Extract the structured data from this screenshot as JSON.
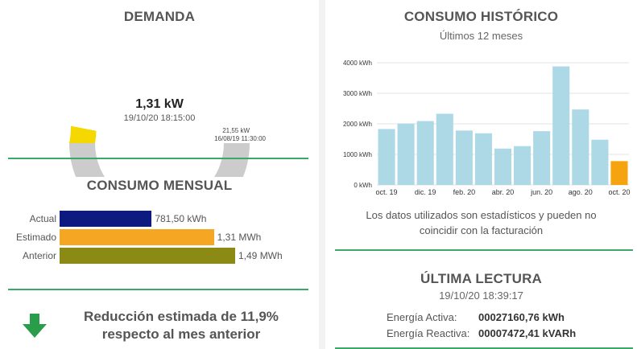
{
  "demanda": {
    "title": "DEMANDA",
    "current_value": "1,31 kW",
    "current_time": "19/10/20 18:15:00",
    "max_value": "21,55 kW",
    "max_time": "16/08/19 11:30:00",
    "fraction": 0.061,
    "color_fill": "#f5d800",
    "color_track": "#cccccc"
  },
  "consumo_mensual": {
    "title": "CONSUMO MENSUAL",
    "rows": [
      {
        "label": "Actual",
        "value": "781,50 kWh",
        "amount": 781.5,
        "color": "#0d1a80"
      },
      {
        "label": "Estimado",
        "value": "1,31 MWh",
        "amount": 1310,
        "color": "#f5a623"
      },
      {
        "label": "Anterior",
        "value": "1,49 MWh",
        "amount": 1490,
        "color": "#8a8a14"
      }
    ]
  },
  "reduccion": {
    "line1": "Reducción estimada de 11,9%",
    "line2": "respecto al mes anterior",
    "arrow_color": "#2a9d4a"
  },
  "historico": {
    "title": "CONSUMO HISTÓRICO",
    "subtitle": "Últimos 12 meses",
    "note_line1": "Los datos utilizados son estadísticos y pueden no",
    "note_line2": "coincidir con la facturación"
  },
  "chart_data": {
    "type": "bar",
    "categories": [
      "oct. 19",
      "nov. 19",
      "dic. 19",
      "ene. 20",
      "feb. 20",
      "mar. 20",
      "abr. 20",
      "may. 20",
      "jun. 20",
      "jul. 20",
      "ago. 20",
      "sep. 20",
      "oct. 20"
    ],
    "values": [
      1830,
      2010,
      2090,
      2330,
      1780,
      1690,
      1190,
      1270,
      1760,
      3880,
      2470,
      1480,
      780
    ],
    "tick_labels_x": [
      "oct. 19",
      "dic. 19",
      "feb. 20",
      "abr. 20",
      "jun. 20",
      "ago. 20",
      "oct. 20"
    ],
    "y_ticks": [
      "0 kWh",
      "1000 kWh",
      "2000 kWh",
      "3000 kWh",
      "4000 kWh"
    ],
    "ylim": [
      0,
      4000
    ],
    "bar_color": "#add8e6",
    "highlight_color": "#f5a30f",
    "grid": true
  },
  "ultima_lectura": {
    "title": "ÚLTIMA LECTURA",
    "datetime": "19/10/20 18:39:17",
    "activa_label": "Energía Activa:",
    "activa_value": "00027160,76 kWh",
    "reactiva_label": "Energía Reactiva:",
    "reactiva_value": "00007472,41 kVARh"
  }
}
